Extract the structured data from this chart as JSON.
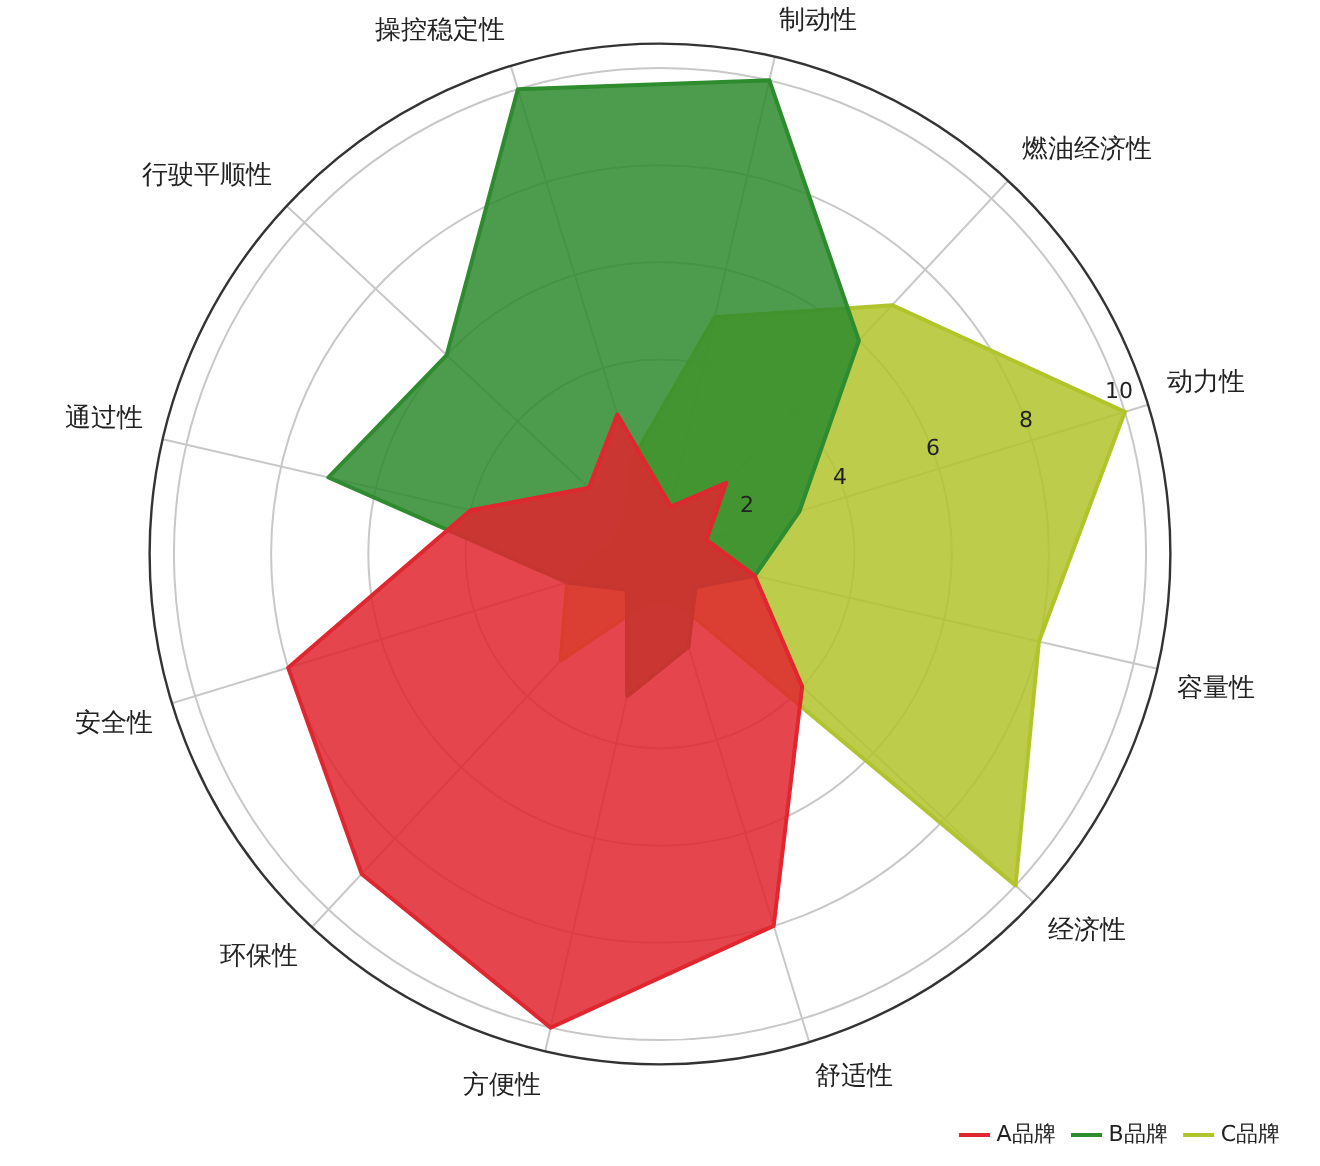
{
  "chart_data": {
    "type": "radar",
    "categories": [
      "制动性",
      "燃油经济性",
      "动力性",
      "容量性",
      "经济性",
      "舒适性",
      "方便性",
      "环保性",
      "安全性",
      "通过性",
      "行驶平顺性",
      "操控稳定性"
    ],
    "series": [
      {
        "name": "A品牌",
        "color": "#e0262f",
        "values": [
          1,
          2,
          1,
          2,
          4,
          8,
          10,
          9,
          8,
          4,
          2,
          3
        ]
      },
      {
        "name": "B品牌",
        "color": "#2e8b2e",
        "values": [
          10,
          6,
          3,
          2,
          1,
          2,
          3,
          1,
          2,
          7,
          6,
          10
        ]
      },
      {
        "name": "C品牌",
        "color": "#b2c42c",
        "values": [
          5,
          7,
          10,
          8,
          10,
          1,
          1,
          3,
          2,
          1,
          1,
          2
        ]
      }
    ],
    "ylim": [
      0,
      10.5
    ],
    "yticks": [
      2,
      4,
      6,
      8,
      10
    ],
    "grid": true,
    "legend": "bottom right",
    "marker": "none"
  }
}
